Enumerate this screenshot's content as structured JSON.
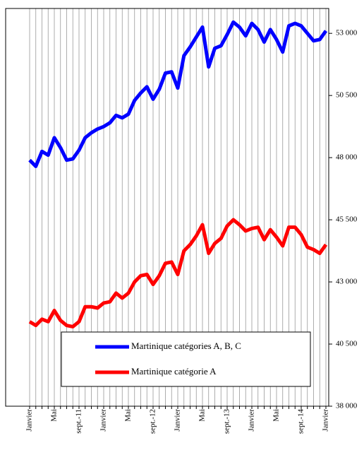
{
  "chart_data": {
    "type": "line",
    "categories": [
      "Janvier",
      null,
      null,
      null,
      "Mai",
      null,
      null,
      null,
      "sept.-11",
      null,
      null,
      null,
      "Janvier",
      null,
      null,
      null,
      "Mai",
      null,
      null,
      null,
      "sept.-12",
      null,
      null,
      null,
      "Janvier",
      null,
      null,
      null,
      "Mai",
      null,
      null,
      null,
      "sept.-13",
      null,
      null,
      null,
      "Janvier",
      null,
      null,
      null,
      "Mai",
      null,
      null,
      null,
      "sept.-14",
      null,
      null,
      null,
      "Janvier"
    ],
    "series": [
      {
        "name": "Martinique catégories A, B, C",
        "color": "#0000ff",
        "values": [
          47900,
          47650,
          48250,
          48100,
          48800,
          48400,
          47900,
          47950,
          48300,
          48800,
          49000,
          49150,
          49250,
          49400,
          49700,
          49600,
          49750,
          50300,
          50600,
          50850,
          50350,
          50750,
          51400,
          51450,
          50800,
          52100,
          52450,
          52850,
          53250,
          51650,
          52400,
          52500,
          52950,
          53450,
          53250,
          52900,
          53400,
          53150,
          52650,
          53150,
          52750,
          52250,
          53300,
          53400,
          53300,
          53000,
          52700,
          52750,
          53100
        ]
      },
      {
        "name": "Martinique catégorie A",
        "color": "#ff0000",
        "values": [
          41400,
          41250,
          41500,
          41400,
          41850,
          41450,
          41250,
          41200,
          41400,
          42000,
          42000,
          41950,
          42150,
          42200,
          42550,
          42350,
          42550,
          43000,
          43250,
          43300,
          42900,
          43250,
          43750,
          43800,
          43300,
          44250,
          44500,
          44850,
          45300,
          44150,
          44550,
          44750,
          45250,
          45500,
          45300,
          45050,
          45150,
          45200,
          44700,
          45100,
          44800,
          44450,
          45200,
          45200,
          44900,
          44400,
          44300,
          44150,
          44500
        ]
      }
    ],
    "ylim": [
      38000,
      54000
    ],
    "yticks": [
      {
        "value": 38000,
        "label": "38 000"
      },
      {
        "value": 40500,
        "label": "40 500"
      },
      {
        "value": 43000,
        "label": "43 000"
      },
      {
        "value": 45500,
        "label": "45 500"
      },
      {
        "value": 48000,
        "label": "48 000"
      },
      {
        "value": 50500,
        "label": "50 500"
      },
      {
        "value": 53000,
        "label": "53 000"
      }
    ],
    "y_axis_side": "right",
    "grid": true
  }
}
